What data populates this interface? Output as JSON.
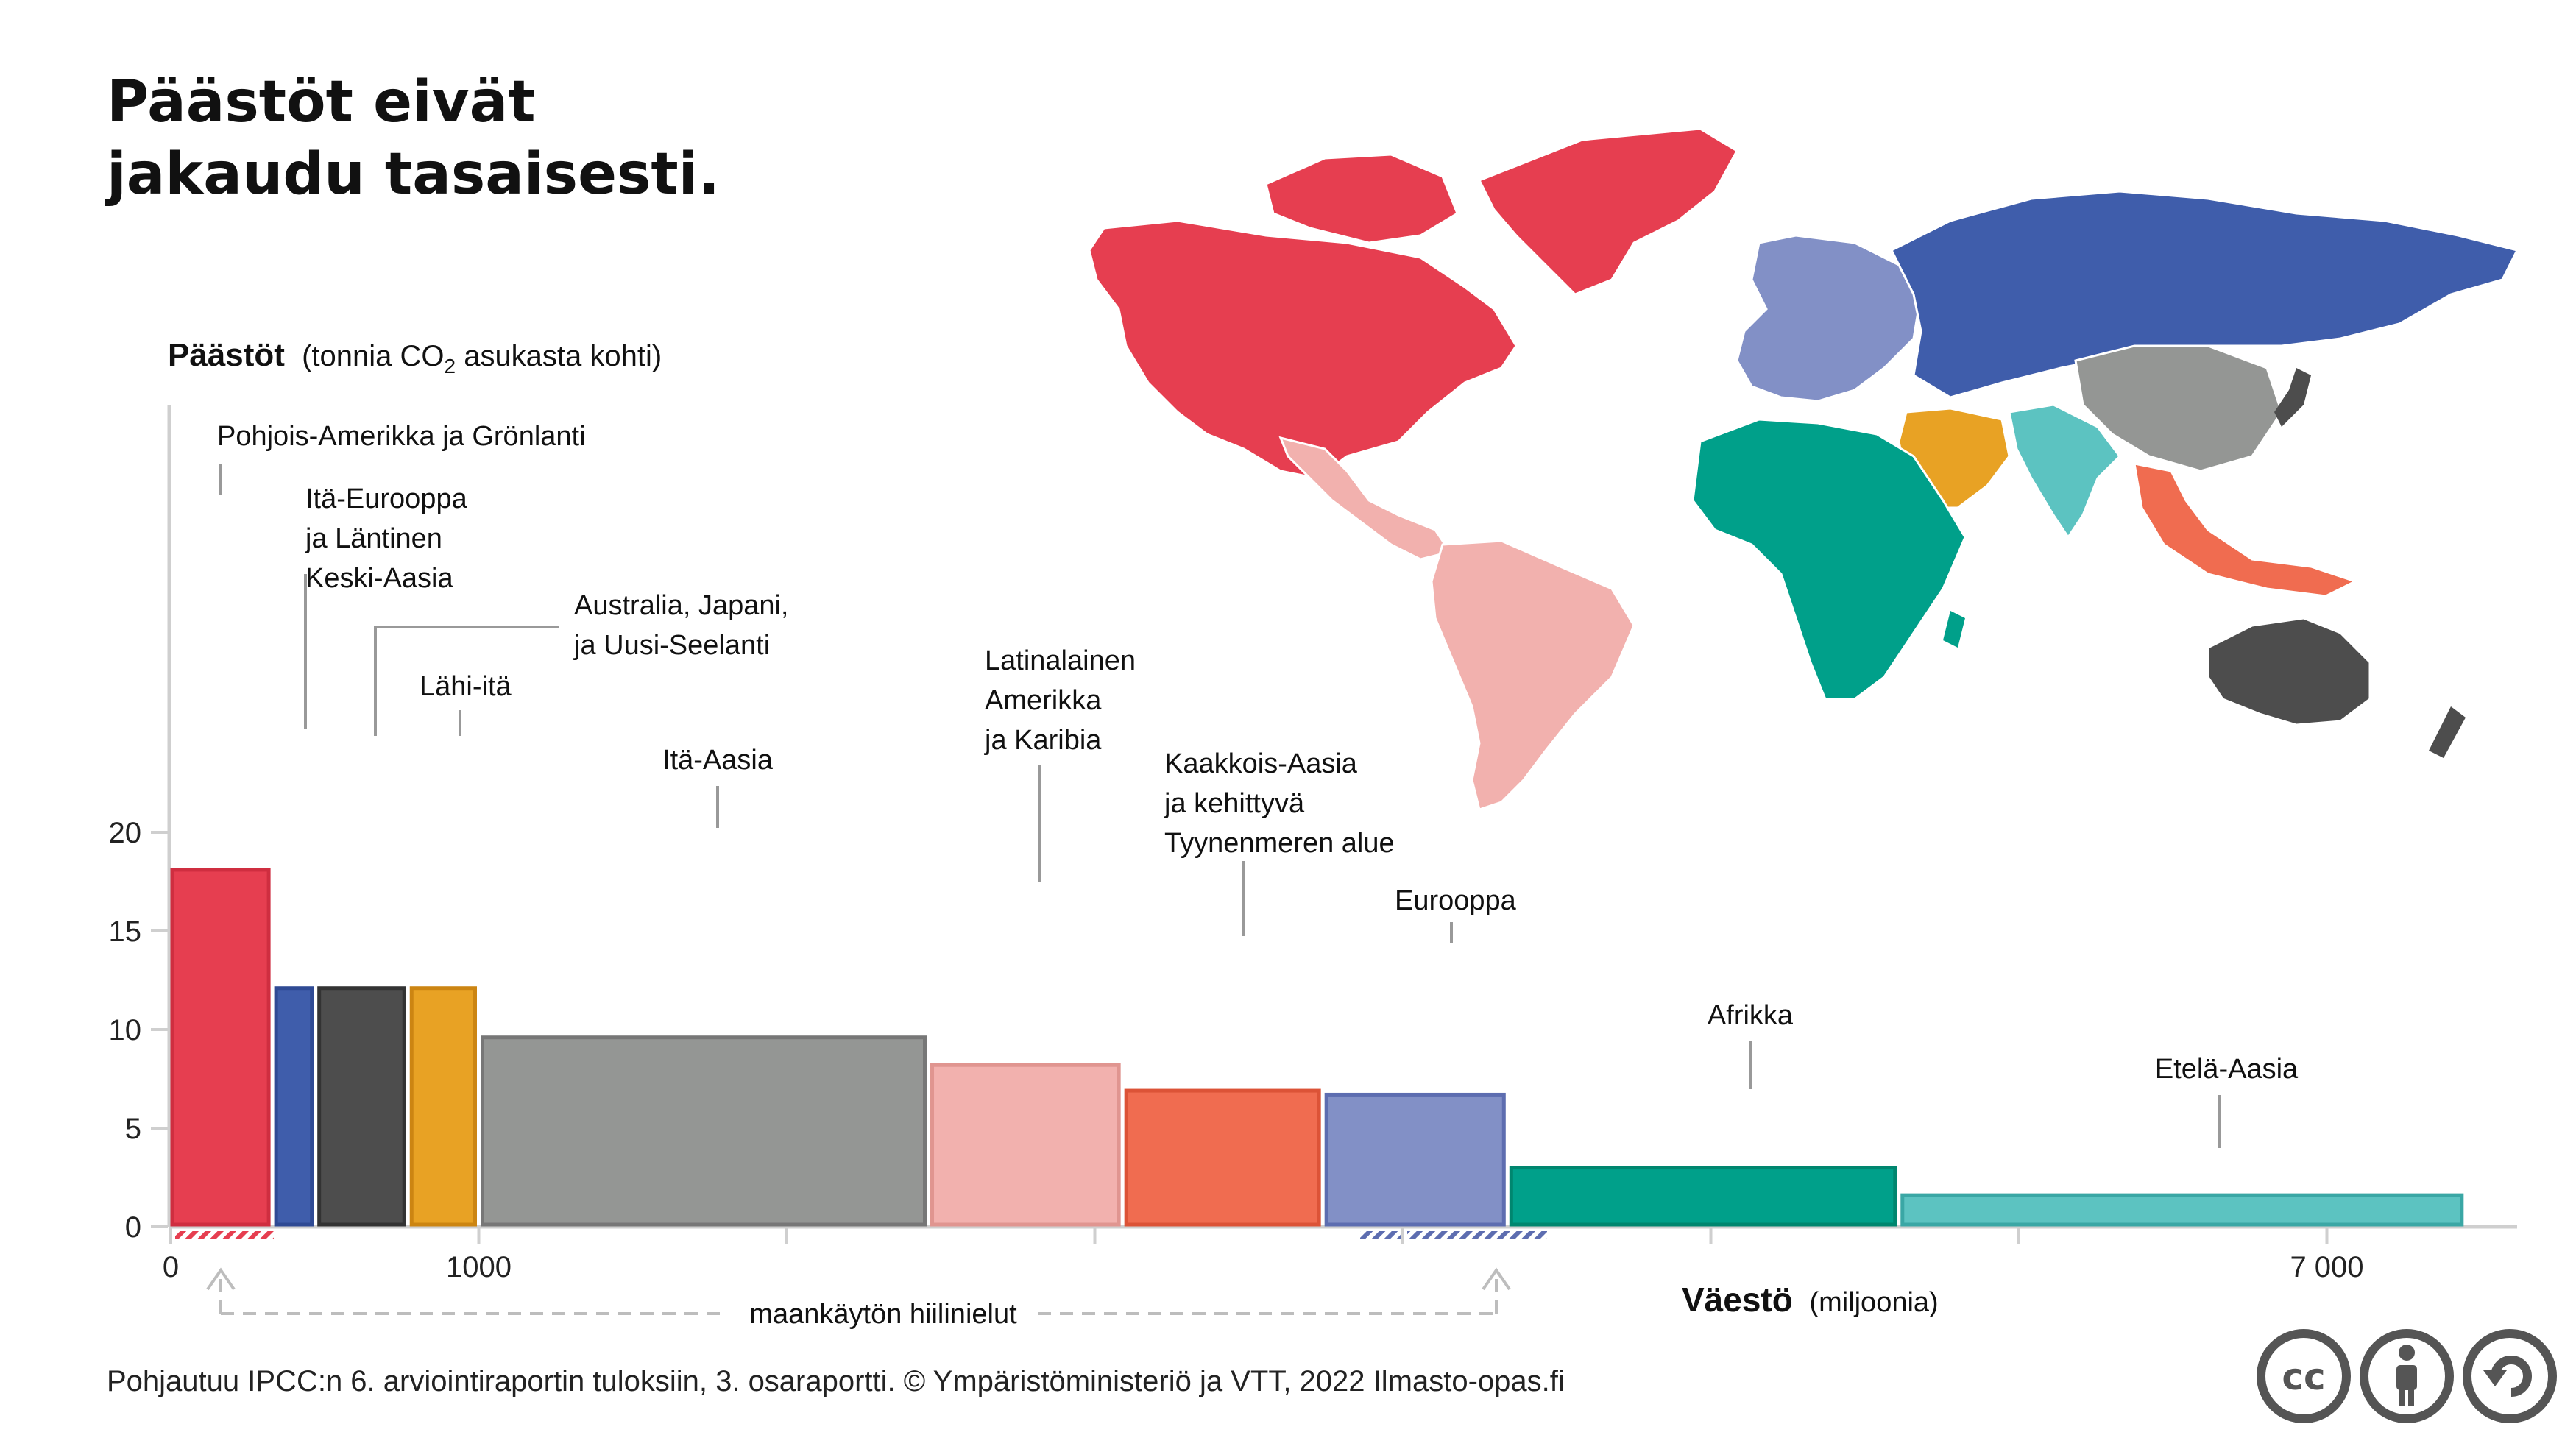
{
  "title": [
    "Päästöt eivät",
    "jakaudu tasaisesti."
  ],
  "chart_data": {
    "type": "bar",
    "variable_width": true,
    "ylabel_main": "Päästöt",
    "ylabel_detail_pre": "(tonnia CO",
    "ylabel_detail_sub": "2",
    "ylabel_detail_post": " asukasta kohti)",
    "xlabel_main": "Väestö",
    "xlabel_detail": "(miljoonia)",
    "ylim": [
      0,
      20
    ],
    "xlim": [
      0,
      7600
    ],
    "yticks": [
      {
        "value": 0,
        "label": "0"
      },
      {
        "value": 5,
        "label": "5"
      },
      {
        "value": 10,
        "label": "10"
      },
      {
        "value": 15,
        "label": "15"
      },
      {
        "value": 20,
        "label": "20"
      }
    ],
    "xticks": [
      {
        "value": 0,
        "label": "0"
      },
      {
        "value": 1000,
        "label": "1000"
      },
      {
        "value": 2000,
        "label": ""
      },
      {
        "value": 3000,
        "label": ""
      },
      {
        "value": 4000,
        "label": ""
      },
      {
        "value": 5000,
        "label": ""
      },
      {
        "value": 6000,
        "label": ""
      },
      {
        "value": 7000,
        "label": "7 000"
      }
    ],
    "regions": [
      {
        "name": "Pohjois-Amerikka ja Grönlanti",
        "lines": [
          "Pohjois-Amerikka ja Grönlanti"
        ],
        "population": 330,
        "value": 18.1,
        "color": "#e63e50",
        "stroke": "#cf2e40"
      },
      {
        "name": "Itä-Eurooppa ja Läntinen Keski-Aasia",
        "lines": [
          "Itä-Eurooppa",
          "ja Läntinen",
          "Keski-Aasia"
        ],
        "population": 140,
        "value": 12.1,
        "color": "#3f5dab",
        "stroke": "#2f4a94"
      },
      {
        "name": "Australia, Japani, ja Uusi-Seelanti",
        "lines": [
          "Australia, Japani,",
          "ja Uusi-Seelanti"
        ],
        "population": 300,
        "value": 12.1,
        "color": "#4d4d4d",
        "stroke": "#333333"
      },
      {
        "name": "Lähi-itä",
        "lines": [
          "Lähi-itä"
        ],
        "population": 230,
        "value": 12.1,
        "color": "#e8a224",
        "stroke": "#cc8512"
      },
      {
        "name": "Itä-Aasia",
        "lines": [
          "Itä-Aasia"
        ],
        "population": 1460,
        "value": 9.6,
        "color": "#949694",
        "stroke": "#777777"
      },
      {
        "name": "Latinalainen Amerikka ja Karibia",
        "lines": [
          "Latinalainen",
          "Amerikka",
          "ja Karibia"
        ],
        "population": 630,
        "value": 8.2,
        "color": "#f2b1ae",
        "stroke": "#e09590"
      },
      {
        "name": "Kaakkois-Aasia ja kehittyvä Tyynenmeren alue",
        "lines": [
          "Kaakkois-Aasia",
          "ja kehittyvä",
          "Tyynenmeren alue"
        ],
        "population": 650,
        "value": 6.9,
        "color": "#f06c50",
        "stroke": "#dc5337"
      },
      {
        "name": "Eurooppa",
        "lines": [
          "Eurooppa"
        ],
        "population": 600,
        "value": 6.7,
        "color": "#8290c6",
        "stroke": "#5d6db0"
      },
      {
        "name": "Afrikka",
        "lines": [
          "Afrikka"
        ],
        "population": 1270,
        "value": 3.0,
        "color": "#00a08a",
        "stroke": "#00866f"
      },
      {
        "name": "Etelä-Aasia",
        "lines": [
          "Etelä-Aasia"
        ],
        "population": 1840,
        "value": 1.6,
        "color": "#5cc3c1",
        "stroke": "#3aa7a5"
      }
    ],
    "land_use_sink_label": "maankäytön hiilinielut"
  },
  "footer": "Pohjautuu IPCC:n  6. arviointiraportin tuloksiin, 3. osaraportti. © Ympäristöministeriö ja VTT, 2022 Ilmasto-opas.fi",
  "badges": [
    {
      "icon": "cc-icon",
      "text": "cc"
    },
    {
      "icon": "attribution-icon"
    },
    {
      "icon": "sharealike-icon"
    }
  ]
}
